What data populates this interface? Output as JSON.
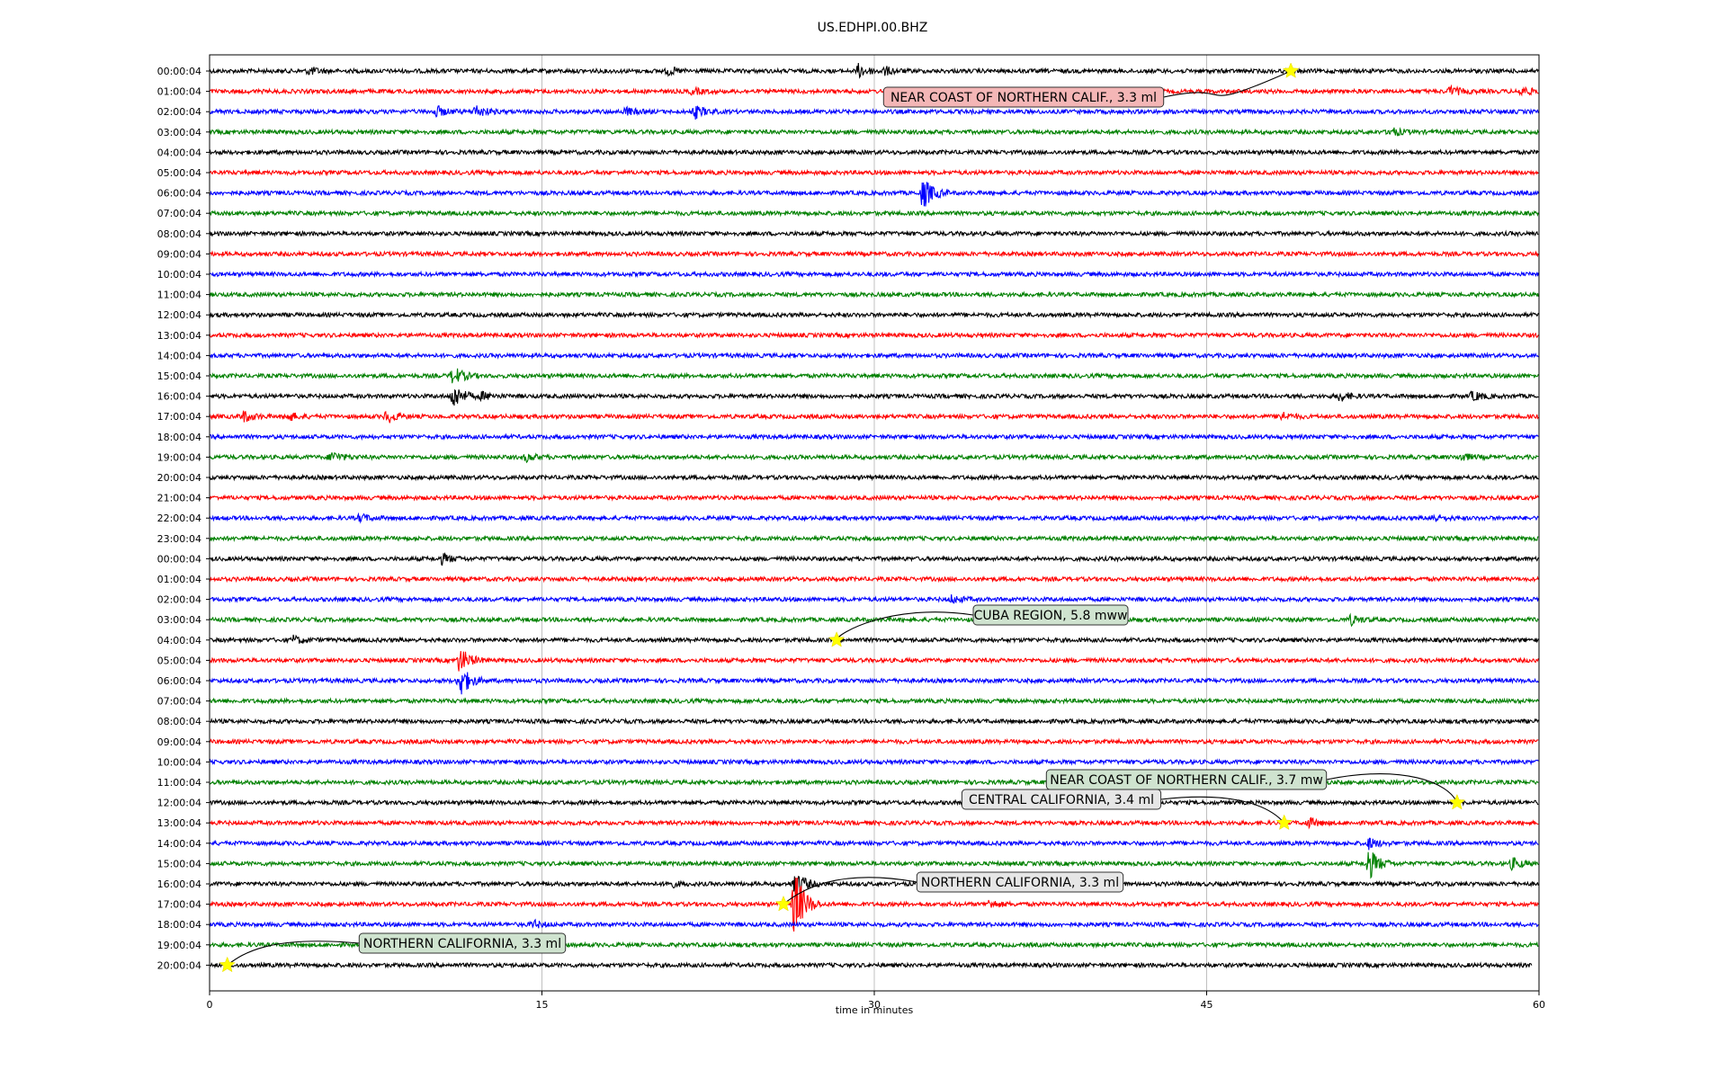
{
  "chart_data": {
    "type": "line",
    "title": "US.EDHPI.00.BHZ",
    "xlabel": "time in minutes",
    "ylabel": "",
    "xlim": [
      0,
      60
    ],
    "x_ticks": [
      0,
      15,
      30,
      45,
      60
    ],
    "x_tick_labels": [
      "0",
      "15",
      "30",
      "45",
      "60"
    ],
    "grid": "vertical at x ticks",
    "trace_colors": [
      "#000000",
      "#ff0000",
      "#0000ff",
      "#008000"
    ],
    "row_labels": [
      "00:00:04",
      "01:00:04",
      "02:00:04",
      "03:00:04",
      "04:00:04",
      "05:00:04",
      "06:00:04",
      "07:00:04",
      "08:00:04",
      "09:00:04",
      "10:00:04",
      "11:00:04",
      "12:00:04",
      "13:00:04",
      "14:00:04",
      "15:00:04",
      "16:00:04",
      "17:00:04",
      "18:00:04",
      "19:00:04",
      "20:00:04",
      "21:00:04",
      "22:00:04",
      "23:00:04",
      "00:00:04",
      "01:00:04",
      "02:00:04",
      "03:00:04",
      "04:00:04",
      "05:00:04",
      "06:00:04",
      "07:00:04",
      "08:00:04",
      "09:00:04",
      "10:00:04",
      "11:00:04",
      "12:00:04",
      "13:00:04",
      "14:00:04",
      "15:00:04",
      "16:00:04",
      "17:00:04",
      "18:00:04",
      "19:00:04",
      "20:00:04"
    ],
    "last_row_end_minute": 59.7,
    "bursts": [
      {
        "row": 0,
        "minute": 29.3,
        "amp": 7
      },
      {
        "row": 0,
        "minute": 30.5,
        "amp": 4
      },
      {
        "row": 0,
        "minute": 4.5,
        "amp": 4
      },
      {
        "row": 0,
        "minute": 20.7,
        "amp": 4
      },
      {
        "row": 1,
        "minute": 56.0,
        "amp": 5
      },
      {
        "row": 1,
        "minute": 59.2,
        "amp": 5
      },
      {
        "row": 1,
        "minute": 21.8,
        "amp": 3
      },
      {
        "row": 2,
        "minute": 10.2,
        "amp": 6
      },
      {
        "row": 2,
        "minute": 12.0,
        "amp": 7
      },
      {
        "row": 2,
        "minute": 18.8,
        "amp": 4
      },
      {
        "row": 2,
        "minute": 21.9,
        "amp": 7
      },
      {
        "row": 3,
        "minute": 53.3,
        "amp": 5
      },
      {
        "row": 6,
        "minute": 32.2,
        "amp": 18
      },
      {
        "row": 15,
        "minute": 11.0,
        "amp": 10
      },
      {
        "row": 16,
        "minute": 11.0,
        "amp": 14
      },
      {
        "row": 16,
        "minute": 12.3,
        "amp": 4
      },
      {
        "row": 16,
        "minute": 51.0,
        "amp": 5
      },
      {
        "row": 16,
        "minute": 57.0,
        "amp": 5
      },
      {
        "row": 17,
        "minute": 1.5,
        "amp": 6
      },
      {
        "row": 17,
        "minute": 3.5,
        "amp": 5
      },
      {
        "row": 17,
        "minute": 8.0,
        "amp": 7
      },
      {
        "row": 17,
        "minute": 48.3,
        "amp": 5
      },
      {
        "row": 19,
        "minute": 5.5,
        "amp": 6
      },
      {
        "row": 19,
        "minute": 14.3,
        "amp": 4
      },
      {
        "row": 19,
        "minute": 56.5,
        "amp": 4
      },
      {
        "row": 22,
        "minute": 6.8,
        "amp": 4
      },
      {
        "row": 22,
        "minute": 55.2,
        "amp": 4
      },
      {
        "row": 24,
        "minute": 10.5,
        "amp": 5
      },
      {
        "row": 26,
        "minute": 33.5,
        "amp": 4
      },
      {
        "row": 27,
        "minute": 51.5,
        "amp": 5
      },
      {
        "row": 28,
        "minute": 3.8,
        "amp": 4
      },
      {
        "row": 29,
        "minute": 11.3,
        "amp": 14
      },
      {
        "row": 30,
        "minute": 11.3,
        "amp": 18
      },
      {
        "row": 37,
        "minute": 49.6,
        "amp": 5
      },
      {
        "row": 38,
        "minute": 52.3,
        "amp": 6
      },
      {
        "row": 39,
        "minute": 52.3,
        "amp": 18
      },
      {
        "row": 39,
        "minute": 58.8,
        "amp": 6
      },
      {
        "row": 40,
        "minute": 20.7,
        "amp": 4
      },
      {
        "row": 40,
        "minute": 26.4,
        "amp": 16
      },
      {
        "row": 41,
        "minute": 26.4,
        "amp": 40
      },
      {
        "row": 41,
        "minute": 35.2,
        "amp": 4
      },
      {
        "row": 42,
        "minute": 14.6,
        "amp": 4
      }
    ],
    "events": [
      {
        "row": 0,
        "minute": 48.8,
        "label": "NEAR COAST OF NORTHERN CALIF., 3.3 ml",
        "box_color": "#f4b6b6"
      },
      {
        "row": 28,
        "minute": 28.3,
        "label": "CUBA REGION, 5.8 mww",
        "box_color": "#cfe3cf"
      },
      {
        "row": 36,
        "minute": 56.3,
        "label": "NEAR COAST OF NORTHERN CALIF., 3.7 mw",
        "box_color": "#cfe3cf"
      },
      {
        "row": 37,
        "minute": 48.5,
        "label": "CENTRAL CALIFORNIA, 3.4 ml",
        "box_color": "#e6e6e6"
      },
      {
        "row": 41,
        "minute": 25.9,
        "label": "NORTHERN CALIFORNIA, 3.3 ml",
        "box_color": "#e6e6e6"
      },
      {
        "row": 44,
        "minute": 0.8,
        "label": "NORTHERN CALIFORNIA, 3.3 ml",
        "box_color": "#cfe3cf"
      }
    ]
  }
}
